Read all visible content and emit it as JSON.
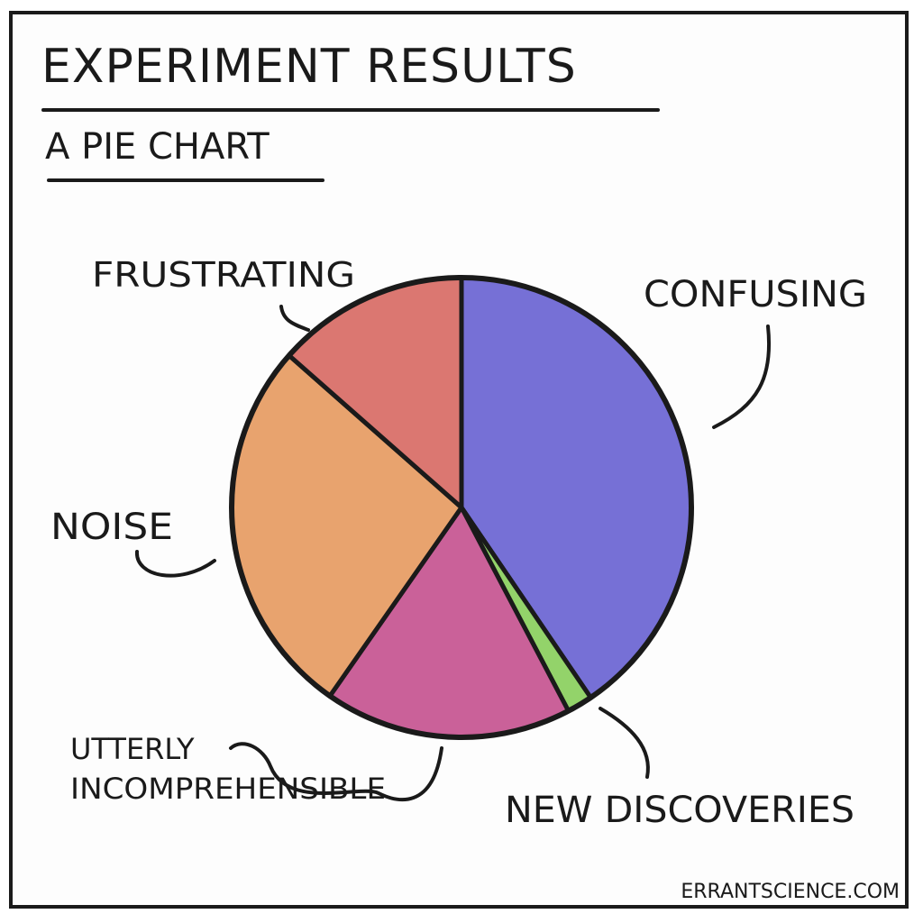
{
  "comic": {
    "title": "Experiment results",
    "subtitle": "A pie chart",
    "credit": "ErrantScience.com"
  },
  "chart_data": {
    "type": "pie",
    "start_angle_deg": 0,
    "direction": "clockwise",
    "slices": [
      {
        "label": "Confusing",
        "value": 40.5,
        "color": "#7670d6"
      },
      {
        "label": "New discoveries",
        "value": 1.8,
        "color": "#93d36a"
      },
      {
        "label": "Utterly incomprehensible",
        "value": 17.4,
        "color": "#ca6199"
      },
      {
        "label": "Noise",
        "value": 26.8,
        "color": "#e8a36e"
      },
      {
        "label": "Frustrating",
        "value": 13.5,
        "color": "#db7771"
      }
    ]
  }
}
